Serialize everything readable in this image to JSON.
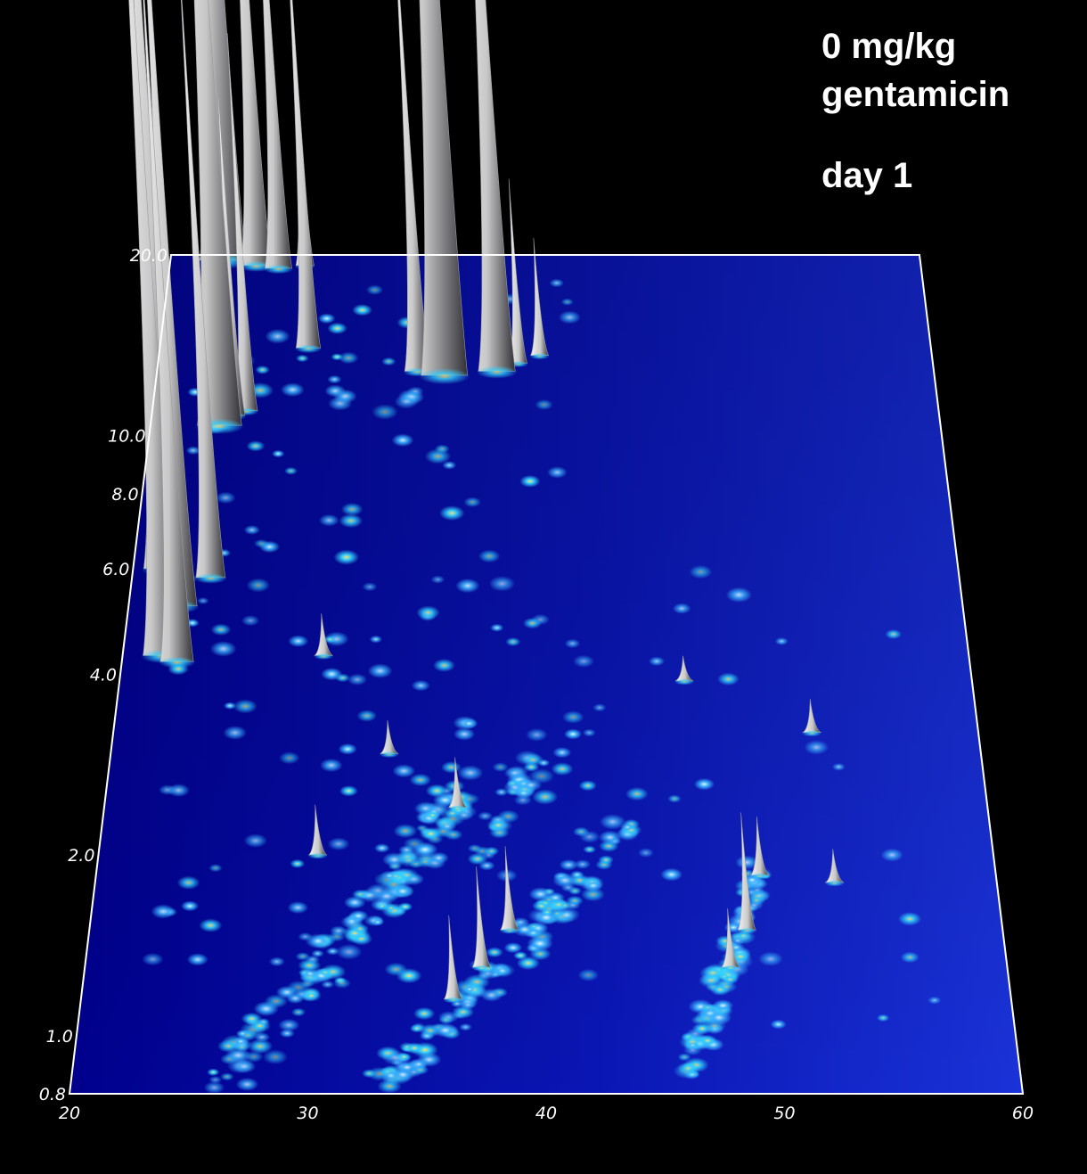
{
  "title": {
    "line1": "0 mg/kg",
    "line2": "gentamicin",
    "line3": "day 1"
  },
  "chart_data": {
    "type": "surface",
    "xlabel": "",
    "ylabel": "",
    "xlim": [
      20,
      60
    ],
    "ylim": [
      0.8,
      20
    ],
    "y_scale": "log",
    "x_ticks": [
      "20",
      "30",
      "40",
      "50",
      "60"
    ],
    "y_ticks": [
      "0.8",
      "1.0",
      "2.0",
      "4.0",
      "6.0",
      "8.0",
      "10.0",
      "20.0"
    ],
    "grid": false,
    "colors": {
      "background": "#000000",
      "surface_light": "#1a32d8",
      "surface_dark": "#00008c",
      "frame": "#ffffff",
      "spot_core": "#ffe070",
      "spot_mid": "#33d0ff",
      "peak": "#e8e8e8"
    },
    "peaks": [
      {
        "x": 22.8,
        "y": 19.6,
        "h": 1.45
      },
      {
        "x": 24.6,
        "y": 19.2,
        "h": 0.8
      },
      {
        "x": 25.8,
        "y": 19.0,
        "h": 0.65
      },
      {
        "x": 27.2,
        "y": 19.2,
        "h": 0.3
      },
      {
        "x": 27.7,
        "y": 14.0,
        "h": 0.55
      },
      {
        "x": 23.5,
        "y": 10.4,
        "h": 1.35
      },
      {
        "x": 24.2,
        "y": 10.8,
        "h": 0.42
      },
      {
        "x": 24.8,
        "y": 11.0,
        "h": 0.45
      },
      {
        "x": 34.8,
        "y": 12.6,
        "h": 1.75
      },
      {
        "x": 33.4,
        "y": 12.8,
        "h": 0.58
      },
      {
        "x": 37.5,
        "y": 12.8,
        "h": 1.05
      },
      {
        "x": 38.6,
        "y": 13.2,
        "h": 0.22
      },
      {
        "x": 39.7,
        "y": 13.6,
        "h": 0.14
      },
      {
        "x": 21.5,
        "y": 6.0,
        "h": 1.2
      },
      {
        "x": 22.4,
        "y": 5.2,
        "h": 1.05
      },
      {
        "x": 23.8,
        "y": 5.8,
        "h": 0.75
      },
      {
        "x": 21.9,
        "y": 4.3,
        "h": 1.15
      },
      {
        "x": 22.6,
        "y": 4.2,
        "h": 0.9
      }
    ],
    "bumps": [
      {
        "x": 29.5,
        "y": 4.3,
        "h": 0.05
      },
      {
        "x": 46.5,
        "y": 3.9,
        "h": 0.03
      },
      {
        "x": 52.3,
        "y": 3.2,
        "h": 0.04
      },
      {
        "x": 32.8,
        "y": 2.95,
        "h": 0.04
      },
      {
        "x": 36.0,
        "y": 2.4,
        "h": 0.06
      },
      {
        "x": 29.8,
        "y": 2.0,
        "h": 0.06
      },
      {
        "x": 49.5,
        "y": 1.85,
        "h": 0.07
      },
      {
        "x": 52.8,
        "y": 1.8,
        "h": 0.04
      },
      {
        "x": 38.4,
        "y": 1.5,
        "h": 0.1
      },
      {
        "x": 37.2,
        "y": 1.3,
        "h": 0.12
      },
      {
        "x": 36.0,
        "y": 1.15,
        "h": 0.1
      },
      {
        "x": 48.8,
        "y": 1.5,
        "h": 0.14
      },
      {
        "x": 48.0,
        "y": 1.3,
        "h": 0.07
      }
    ]
  }
}
